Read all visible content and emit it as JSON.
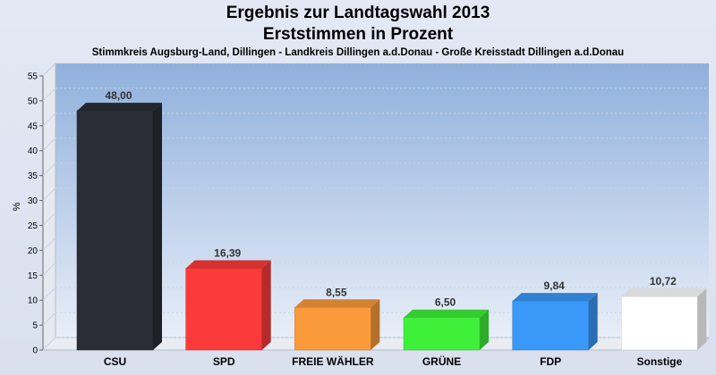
{
  "header": {
    "title": "Ergebnis zur Landtagswahl 2013",
    "subtitle": "Erststimmen in Prozent",
    "region": "Stimmkreis Augsburg-Land, Dillingen - Landkreis Dillingen a.d.Donau - Große Kreisstadt Dillingen a.d.Donau"
  },
  "chart_data": {
    "type": "bar",
    "title": "Ergebnis zur Landtagswahl 2013",
    "subtitle": "Erststimmen in Prozent",
    "xlabel": "",
    "ylabel": "%",
    "ylim": [
      0,
      55
    ],
    "yticks": [
      0,
      5,
      10,
      15,
      20,
      25,
      30,
      35,
      40,
      45,
      50,
      55
    ],
    "grid": true,
    "categories": [
      "CSU",
      "SPD",
      "FREIE WÄHLER",
      "GRÜNE",
      "FDP",
      "Sonstige"
    ],
    "values": [
      48.0,
      16.39,
      8.55,
      6.5,
      9.84,
      10.72
    ],
    "value_labels": [
      "48,00",
      "16,39",
      "8,55",
      "6,50",
      "9,84",
      "10,72"
    ],
    "colors": [
      "#2a2d36",
      "#fb3a3a",
      "#fb9a3a",
      "#3ff03a",
      "#3a98f8",
      "#ffffff"
    ]
  }
}
